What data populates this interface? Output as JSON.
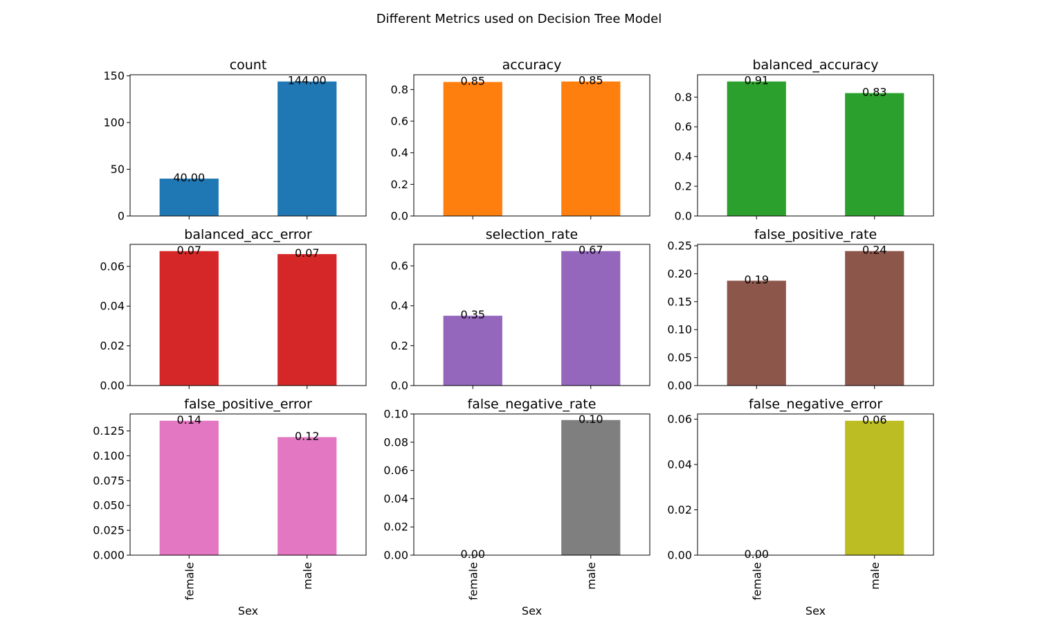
{
  "figure": {
    "suptitle": "Different Metrics used on Decision Tree Model"
  },
  "chart_data": [
    {
      "type": "bar",
      "title": "count",
      "categories": [
        "female",
        "male"
      ],
      "values": [
        40,
        144
      ],
      "labels": [
        "40.00",
        "144.00"
      ],
      "ylim": [
        0,
        151.2
      ],
      "yticks": [
        0,
        50,
        100,
        150
      ],
      "ytick_labels": [
        "0",
        "50",
        "100",
        "150"
      ],
      "xlabel": "Sex",
      "color": "#1f77b4"
    },
    {
      "type": "bar",
      "title": "accuracy",
      "categories": [
        "female",
        "male"
      ],
      "values": [
        0.848,
        0.851
      ],
      "labels": [
        "0.85",
        "0.85"
      ],
      "ylim": [
        0,
        0.8936
      ],
      "yticks": [
        0,
        0.2,
        0.4,
        0.6,
        0.8
      ],
      "ytick_labels": [
        "0.0",
        "0.2",
        "0.4",
        "0.6",
        "0.8"
      ],
      "xlabel": "Sex",
      "color": "#ff7f0e"
    },
    {
      "type": "bar",
      "title": "balanced_accuracy",
      "categories": [
        "female",
        "male"
      ],
      "values": [
        0.905,
        0.827
      ],
      "labels": [
        "0.91",
        "0.83"
      ],
      "ylim": [
        0,
        0.9503
      ],
      "yticks": [
        0,
        0.2,
        0.4,
        0.6,
        0.8
      ],
      "ytick_labels": [
        "0.0",
        "0.2",
        "0.4",
        "0.6",
        "0.8"
      ],
      "xlabel": "Sex",
      "color": "#2ca02c"
    },
    {
      "type": "bar",
      "title": "balanced_acc_error",
      "categories": [
        "female",
        "male"
      ],
      "values": [
        0.0677,
        0.0662
      ],
      "labels": [
        "0.07",
        "0.07"
      ],
      "ylim": [
        0,
        0.0711
      ],
      "yticks": [
        0,
        0.02,
        0.04,
        0.06
      ],
      "ytick_labels": [
        "0.00",
        "0.02",
        "0.04",
        "0.06"
      ],
      "xlabel": "Sex",
      "color": "#d62728"
    },
    {
      "type": "bar",
      "title": "selection_rate",
      "categories": [
        "female",
        "male"
      ],
      "values": [
        0.35,
        0.674
      ],
      "labels": [
        "0.35",
        "0.67"
      ],
      "ylim": [
        0,
        0.7077
      ],
      "yticks": [
        0,
        0.2,
        0.4,
        0.6
      ],
      "ytick_labels": [
        "0.0",
        "0.2",
        "0.4",
        "0.6"
      ],
      "xlabel": "Sex",
      "color": "#9467bd"
    },
    {
      "type": "bar",
      "title": "false_positive_rate",
      "categories": [
        "female",
        "male"
      ],
      "values": [
        0.1875,
        0.2405
      ],
      "labels": [
        "0.19",
        "0.24"
      ],
      "ylim": [
        0,
        0.2525
      ],
      "yticks": [
        0,
        0.05,
        0.1,
        0.15,
        0.2,
        0.25
      ],
      "ytick_labels": [
        "0.00",
        "0.05",
        "0.10",
        "0.15",
        "0.20",
        "0.25"
      ],
      "xlabel": "Sex",
      "color": "#8c564b"
    },
    {
      "type": "bar",
      "title": "false_positive_error",
      "categories": [
        "female",
        "male"
      ],
      "values": [
        0.1353,
        0.1188
      ],
      "labels": [
        "0.14",
        "0.12"
      ],
      "ylim": [
        0,
        0.1421
      ],
      "yticks": [
        0,
        0.025,
        0.05,
        0.075,
        0.1,
        0.125
      ],
      "ytick_labels": [
        "0.000",
        "0.025",
        "0.050",
        "0.075",
        "0.100",
        "0.125"
      ],
      "xlabel": "Sex",
      "color": "#e377c2"
    },
    {
      "type": "bar",
      "title": "false_negative_rate",
      "categories": [
        "female",
        "male"
      ],
      "values": [
        0.0,
        0.0957
      ],
      "labels": [
        "0.00",
        "0.10"
      ],
      "ylim": [
        0,
        0.1
      ],
      "yticks": [
        0,
        0.02,
        0.04,
        0.06,
        0.08,
        0.1
      ],
      "ytick_labels": [
        "0.00",
        "0.02",
        "0.04",
        "0.06",
        "0.08",
        "0.10"
      ],
      "xlabel": "Sex",
      "color": "#7f7f7f"
    },
    {
      "type": "bar",
      "title": "false_negative_error",
      "categories": [
        "female",
        "male"
      ],
      "values": [
        0.0,
        0.0593
      ],
      "labels": [
        "0.00",
        "0.06"
      ],
      "ylim": [
        0,
        0.0623
      ],
      "yticks": [
        0,
        0.02,
        0.04,
        0.06
      ],
      "ytick_labels": [
        "0.00",
        "0.02",
        "0.04",
        "0.06"
      ],
      "xlabel": "Sex",
      "color": "#bcbd22"
    }
  ]
}
